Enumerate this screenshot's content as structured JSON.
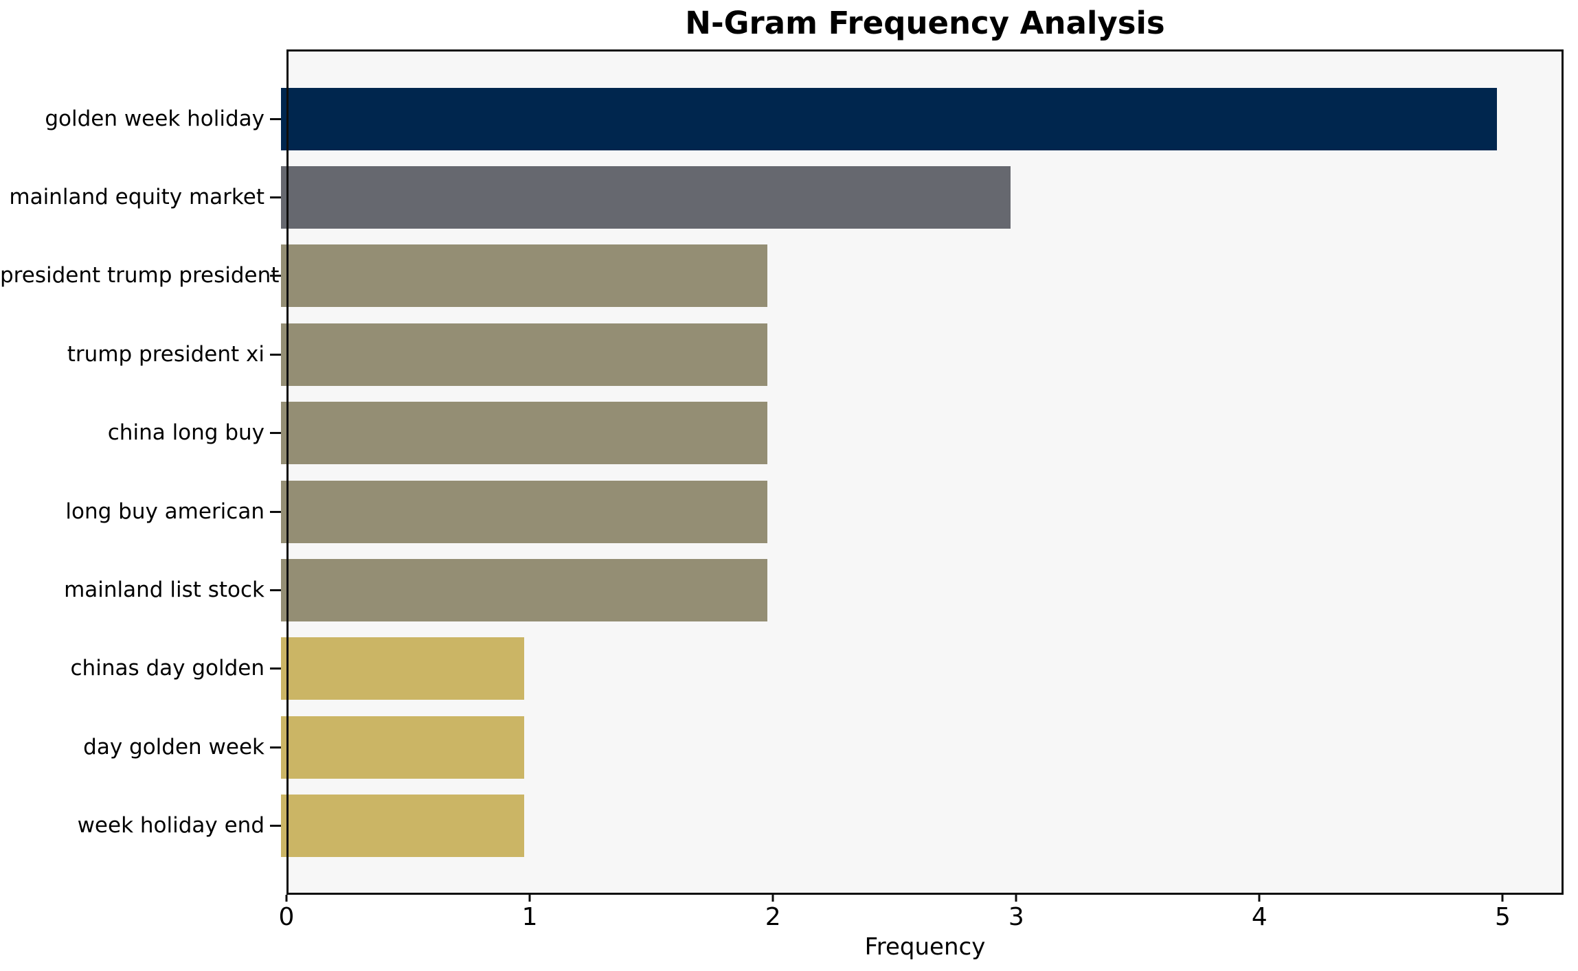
{
  "chart_data": {
    "type": "bar",
    "orientation": "horizontal",
    "title": "N-Gram Frequency Analysis",
    "xlabel": "Frequency",
    "ylabel": "",
    "categories": [
      "golden week holiday",
      "mainland equity market",
      "president trump president",
      "trump president xi",
      "china long buy",
      "long buy american",
      "mainland list stock",
      "chinas day golden",
      "day golden week",
      "week holiday end"
    ],
    "values": [
      5,
      3,
      2,
      2,
      2,
      2,
      2,
      1,
      1,
      1
    ],
    "bar_colors": [
      "#00264e",
      "#66686f",
      "#948e74",
      "#948e74",
      "#948e74",
      "#948e74",
      "#948e74",
      "#cbb565",
      "#cbb565",
      "#cbb565"
    ],
    "xlim": [
      0,
      5.25
    ],
    "xticks": [
      0,
      1,
      2,
      3,
      4,
      5
    ],
    "grid": false,
    "legend": null,
    "plot_background": "#f7f7f7",
    "figure_background": "#ffffff",
    "axis_color": "#0d0d0d"
  }
}
